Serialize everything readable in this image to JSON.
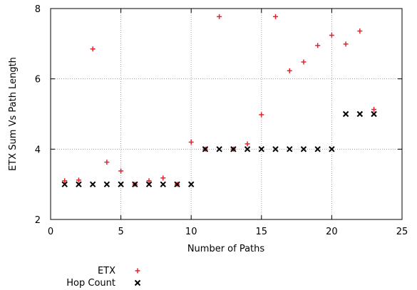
{
  "chart_data": {
    "type": "scatter",
    "xlabel": "Number of Paths",
    "ylabel": "ETX Sum Vs Path Length",
    "xlim": [
      0,
      25
    ],
    "ylim": [
      2,
      8
    ],
    "xticks": [
      "0",
      "5",
      "10",
      "15",
      "20",
      "25"
    ],
    "yticks": [
      "2",
      "4",
      "6",
      "8"
    ],
    "grid": true,
    "legend_position": "bottom-left",
    "series": [
      {
        "name": "ETX",
        "marker": "plus",
        "color": "#e8202a",
        "points": [
          [
            1,
            3.1
          ],
          [
            2,
            3.12
          ],
          [
            3,
            6.85
          ],
          [
            4,
            3.63
          ],
          [
            5,
            3.38
          ],
          [
            6,
            3.0
          ],
          [
            7,
            3.1
          ],
          [
            8,
            3.18
          ],
          [
            9,
            3.0
          ],
          [
            10,
            4.2
          ],
          [
            11,
            4.0
          ],
          [
            12,
            7.77
          ],
          [
            13,
            4.0
          ],
          [
            14,
            4.15
          ],
          [
            15,
            4.98
          ],
          [
            16,
            7.77
          ],
          [
            17,
            6.23
          ],
          [
            18,
            6.48
          ],
          [
            19,
            6.95
          ],
          [
            20,
            7.24
          ],
          [
            21,
            6.99
          ],
          [
            22,
            7.36
          ],
          [
            23,
            5.13
          ]
        ]
      },
      {
        "name": "Hop Count",
        "marker": "cross",
        "color": "#000000",
        "points": [
          [
            1,
            3
          ],
          [
            2,
            3
          ],
          [
            3,
            3
          ],
          [
            4,
            3
          ],
          [
            5,
            3
          ],
          [
            6,
            3
          ],
          [
            7,
            3
          ],
          [
            8,
            3
          ],
          [
            9,
            3
          ],
          [
            10,
            3
          ],
          [
            11,
            4
          ],
          [
            12,
            4
          ],
          [
            13,
            4
          ],
          [
            14,
            4
          ],
          [
            15,
            4
          ],
          [
            16,
            4
          ],
          [
            17,
            4
          ],
          [
            18,
            4
          ],
          [
            19,
            4
          ],
          [
            20,
            4
          ],
          [
            21,
            5
          ],
          [
            22,
            5
          ],
          [
            23,
            5
          ]
        ]
      }
    ]
  }
}
